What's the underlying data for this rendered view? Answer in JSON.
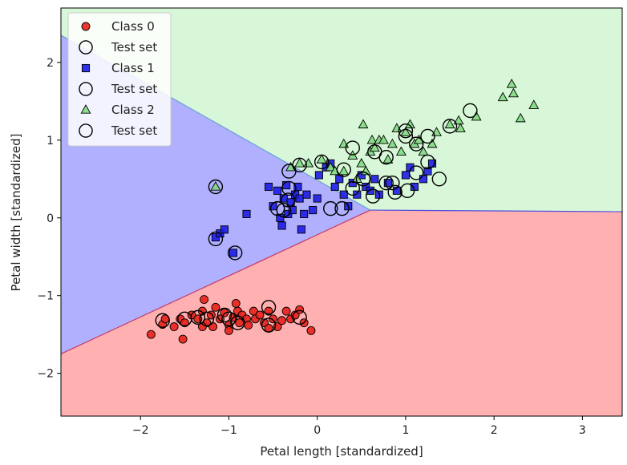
{
  "chart_data": {
    "type": "scatter",
    "title": "",
    "xlabel": "Petal length [standardized]",
    "ylabel": "Petal width [standardized]",
    "xlim": [
      -2.9,
      3.45
    ],
    "ylim": [
      -2.55,
      2.7
    ],
    "xticks": [
      -2,
      -1,
      0,
      1,
      2,
      3
    ],
    "xtick_labels": [
      "−2",
      "−1",
      "0",
      "1",
      "2",
      "3"
    ],
    "yticks": [
      -2,
      -1,
      0,
      1,
      2
    ],
    "ytick_labels": [
      "−2",
      "−1",
      "0",
      "1",
      "2"
    ],
    "grid": false,
    "legend_position": "top-left",
    "legend": [
      {
        "label": "Class 0",
        "marker": "circle",
        "color": "#e8211b"
      },
      {
        "label": "Test set",
        "marker": "ring",
        "color": "#000000"
      },
      {
        "label": "Class 1",
        "marker": "square",
        "color": "#1c1ce6"
      },
      {
        "label": "Test set",
        "marker": "ring",
        "color": "#000000"
      },
      {
        "label": "Class 2",
        "marker": "triangle",
        "color": "#82d982"
      },
      {
        "label": "Test set",
        "marker": "ring",
        "color": "#000000"
      }
    ],
    "regions": {
      "class_0_color": "#ffb0b0",
      "class_1_color": "#b0b0ff",
      "class_2_color": "#d8f7d8",
      "boundary_01": [
        [
          -2.9,
          -1.75
        ],
        [
          0.6,
          0.1
        ]
      ],
      "boundary_12": [
        [
          -2.9,
          2.35
        ],
        [
          0.6,
          0.1
        ]
      ],
      "boundary_02": [
        [
          0.6,
          0.1
        ],
        [
          3.45,
          0.08
        ]
      ]
    },
    "series": [
      {
        "name": "Class 0",
        "marker": "circle",
        "color": "#e8211b",
        "points": [
          [
            -1.88,
            -1.5
          ],
          [
            -1.75,
            -1.37
          ],
          [
            -1.72,
            -1.3
          ],
          [
            -1.62,
            -1.4
          ],
          [
            -1.55,
            -1.3
          ],
          [
            -1.52,
            -1.56
          ],
          [
            -1.5,
            -1.35
          ],
          [
            -1.42,
            -1.25
          ],
          [
            -1.35,
            -1.3
          ],
          [
            -1.3,
            -1.2
          ],
          [
            -1.28,
            -1.05
          ],
          [
            -1.25,
            -1.35
          ],
          [
            -1.2,
            -1.25
          ],
          [
            -1.18,
            -1.4
          ],
          [
            -1.15,
            -1.15
          ],
          [
            -1.1,
            -1.3
          ],
          [
            -1.05,
            -1.22
          ],
          [
            -1.0,
            -1.38
          ],
          [
            -0.95,
            -1.28
          ],
          [
            -0.92,
            -1.1
          ],
          [
            -0.9,
            -1.2
          ],
          [
            -0.88,
            -1.35
          ],
          [
            -0.85,
            -1.25
          ],
          [
            -0.8,
            -1.3
          ],
          [
            -0.78,
            -1.38
          ],
          [
            -0.72,
            -1.2
          ],
          [
            -0.7,
            -1.3
          ],
          [
            -0.65,
            -1.25
          ],
          [
            -0.6,
            -1.35
          ],
          [
            -0.55,
            -1.2
          ],
          [
            -0.5,
            -1.3
          ],
          [
            -0.45,
            -1.4
          ],
          [
            -0.4,
            -1.32
          ],
          [
            -0.35,
            -1.2
          ],
          [
            -0.3,
            -1.3
          ],
          [
            -0.25,
            -1.25
          ],
          [
            -0.2,
            -1.18
          ],
          [
            -0.15,
            -1.35
          ],
          [
            -0.07,
            -1.45
          ],
          [
            -0.55,
            -1.42
          ],
          [
            -1.0,
            -1.45
          ],
          [
            -1.3,
            -1.4
          ]
        ]
      },
      {
        "name": "Class 1",
        "marker": "square",
        "color": "#1c1ce6",
        "points": [
          [
            -1.15,
            -0.25
          ],
          [
            -1.1,
            -0.2
          ],
          [
            -1.05,
            -0.15
          ],
          [
            -0.95,
            -0.45
          ],
          [
            -0.8,
            0.05
          ],
          [
            -0.55,
            0.4
          ],
          [
            -0.5,
            0.15
          ],
          [
            -0.45,
            0.35
          ],
          [
            -0.42,
            0.0
          ],
          [
            -0.4,
            -0.1
          ],
          [
            -0.38,
            0.25
          ],
          [
            -0.35,
            0.42
          ],
          [
            -0.33,
            0.05
          ],
          [
            -0.3,
            0.2
          ],
          [
            -0.28,
            0.1
          ],
          [
            -0.25,
            0.3
          ],
          [
            -0.22,
            0.4
          ],
          [
            -0.2,
            0.25
          ],
          [
            -0.18,
            -0.15
          ],
          [
            -0.15,
            0.05
          ],
          [
            -0.12,
            0.3
          ],
          [
            -0.05,
            0.1
          ],
          [
            0.0,
            0.25
          ],
          [
            0.02,
            0.55
          ],
          [
            0.1,
            0.65
          ],
          [
            0.15,
            0.7
          ],
          [
            0.2,
            0.4
          ],
          [
            0.25,
            0.5
          ],
          [
            0.3,
            0.3
          ],
          [
            0.35,
            0.15
          ],
          [
            0.4,
            0.45
          ],
          [
            0.45,
            0.3
          ],
          [
            0.5,
            0.55
          ],
          [
            0.55,
            0.4
          ],
          [
            0.6,
            0.35
          ],
          [
            0.65,
            0.5
          ],
          [
            0.7,
            0.3
          ],
          [
            0.8,
            0.45
          ],
          [
            0.9,
            0.35
          ],
          [
            1.0,
            0.55
          ],
          [
            1.05,
            0.65
          ],
          [
            1.1,
            0.4
          ],
          [
            1.2,
            0.5
          ],
          [
            1.25,
            0.6
          ],
          [
            1.3,
            0.7
          ]
        ]
      },
      {
        "name": "Class 2",
        "marker": "triangle",
        "color": "#82d982",
        "points": [
          [
            -1.15,
            0.4
          ],
          [
            -0.3,
            0.65
          ],
          [
            -0.2,
            0.7
          ],
          [
            -0.1,
            0.7
          ],
          [
            0.05,
            0.75
          ],
          [
            0.15,
            0.65
          ],
          [
            0.2,
            0.6
          ],
          [
            0.3,
            0.6
          ],
          [
            0.3,
            0.95
          ],
          [
            0.4,
            0.8
          ],
          [
            0.45,
            0.5
          ],
          [
            0.5,
            0.7
          ],
          [
            0.52,
            1.2
          ],
          [
            0.55,
            0.6
          ],
          [
            0.6,
            0.85
          ],
          [
            0.62,
            1.0
          ],
          [
            0.65,
            0.9
          ],
          [
            0.7,
            1.0
          ],
          [
            0.75,
            1.0
          ],
          [
            0.8,
            0.75
          ],
          [
            0.85,
            0.95
          ],
          [
            0.9,
            1.15
          ],
          [
            0.95,
            0.85
          ],
          [
            1.0,
            1.1
          ],
          [
            1.05,
            1.2
          ],
          [
            1.1,
            0.95
          ],
          [
            1.15,
            1.0
          ],
          [
            1.2,
            0.85
          ],
          [
            1.3,
            0.95
          ],
          [
            1.35,
            1.1
          ],
          [
            1.5,
            1.2
          ],
          [
            1.6,
            1.25
          ],
          [
            1.62,
            1.15
          ],
          [
            1.8,
            1.3
          ],
          [
            2.1,
            1.55
          ],
          [
            2.2,
            1.72
          ],
          [
            2.22,
            1.6
          ],
          [
            2.3,
            1.28
          ],
          [
            2.45,
            1.45
          ]
        ]
      }
    ],
    "test_set": [
      [
        -1.75,
        -1.32
      ],
      [
        -1.5,
        -1.3
      ],
      [
        -1.35,
        -1.28
      ],
      [
        -1.25,
        -1.3
      ],
      [
        -1.05,
        -1.25
      ],
      [
        -1.0,
        -1.3
      ],
      [
        -0.9,
        -1.35
      ],
      [
        -0.55,
        -1.15
      ],
      [
        -0.55,
        -1.38
      ],
      [
        -0.2,
        -1.28
      ],
      [
        -1.15,
        0.4
      ],
      [
        -1.15,
        -0.27
      ],
      [
        -0.93,
        -0.45
      ],
      [
        -0.45,
        0.12
      ],
      [
        -0.38,
        0.1
      ],
      [
        -0.33,
        0.23
      ],
      [
        -0.32,
        0.38
      ],
      [
        -0.32,
        0.6
      ],
      [
        -0.2,
        0.68
      ],
      [
        0.05,
        0.72
      ],
      [
        0.15,
        0.12
      ],
      [
        0.28,
        0.12
      ],
      [
        0.3,
        0.62
      ],
      [
        0.4,
        0.9
      ],
      [
        0.4,
        0.38
      ],
      [
        0.52,
        0.5
      ],
      [
        0.63,
        0.28
      ],
      [
        0.65,
        0.85
      ],
      [
        0.78,
        0.78
      ],
      [
        0.78,
        0.45
      ],
      [
        0.85,
        0.45
      ],
      [
        0.88,
        0.33
      ],
      [
        1.0,
        1.12
      ],
      [
        1.0,
        1.05
      ],
      [
        1.02,
        0.35
      ],
      [
        1.12,
        0.95
      ],
      [
        1.12,
        0.58
      ],
      [
        1.25,
        1.05
      ],
      [
        1.25,
        0.72
      ],
      [
        1.38,
        0.5
      ],
      [
        1.5,
        1.18
      ],
      [
        1.73,
        1.38
      ]
    ]
  }
}
